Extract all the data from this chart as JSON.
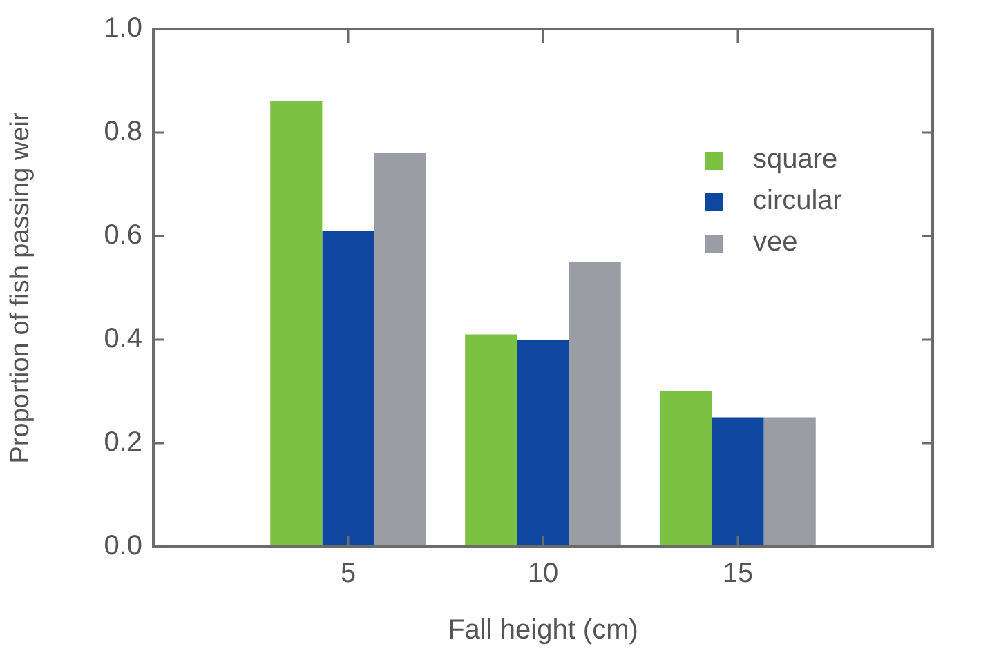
{
  "chart_data": {
    "type": "bar",
    "xlabel": "Fall height (cm)",
    "ylabel": "Proportion of fish passing weir",
    "x": [
      5,
      10,
      15
    ],
    "xlim": [
      0,
      20
    ],
    "xticks": [
      5,
      10,
      15
    ],
    "ylim": [
      0,
      1
    ],
    "yticks": [
      {
        "value": 0,
        "label": "0.0"
      },
      {
        "value": 0.2,
        "label": "0.2"
      },
      {
        "value": 0.4,
        "label": "0.4"
      },
      {
        "value": 0.6,
        "label": "0.6"
      },
      {
        "value": 0.8,
        "label": "0.8"
      },
      {
        "value": 1,
        "label": "1.0"
      }
    ],
    "series": [
      {
        "name": "square",
        "color": "#7cc242",
        "values": [
          0.86,
          0.41,
          0.3
        ]
      },
      {
        "name": "circular",
        "color": "#0f47a0",
        "values": [
          0.61,
          0.4,
          0.25
        ]
      },
      {
        "name": "vee",
        "color": "#9a9ea4",
        "values": [
          0.76,
          0.55,
          0.25
        ]
      }
    ],
    "legend": "top right",
    "grid": false
  }
}
